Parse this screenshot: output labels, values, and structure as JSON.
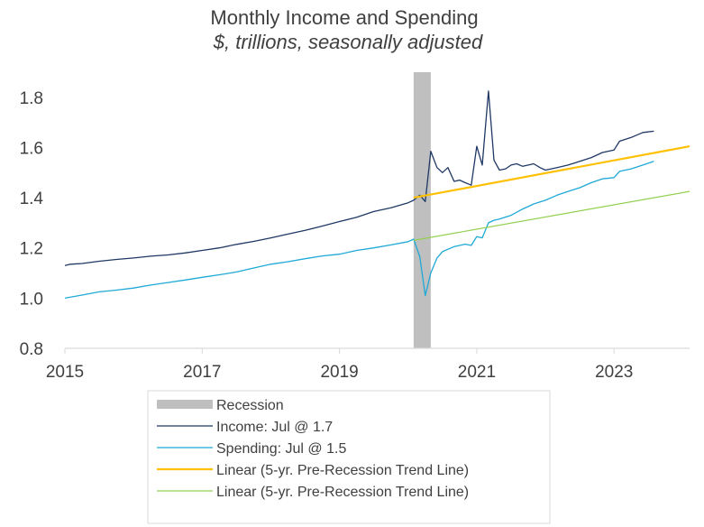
{
  "chart_data": {
    "type": "line",
    "title": "Monthly Income and Spending",
    "subtitle": "$, trillions, seasonally adjusted",
    "xlabel": "",
    "ylabel": "",
    "xlim": [
      2015,
      2024.1
    ],
    "ylim": [
      0.8,
      1.9
    ],
    "x_ticks": [
      "2015",
      "2017",
      "2019",
      "2021",
      "2023"
    ],
    "y_ticks": [
      "0.8",
      "1.0",
      "1.2",
      "1.4",
      "1.6",
      "1.8"
    ],
    "recession": {
      "name": "Recession",
      "start": 2020.08,
      "end": 2020.33,
      "color": "#bfbfbf"
    },
    "series": [
      {
        "name": "Income: Jul @ 1.7",
        "color": "#1f3864",
        "points": [
          [
            2015.0,
            1.13
          ],
          [
            2015.08,
            1.135
          ],
          [
            2015.25,
            1.138
          ],
          [
            2015.5,
            1.147
          ],
          [
            2015.75,
            1.154
          ],
          [
            2016.0,
            1.16
          ],
          [
            2016.25,
            1.167
          ],
          [
            2016.5,
            1.172
          ],
          [
            2016.75,
            1.18
          ],
          [
            2017.0,
            1.19
          ],
          [
            2017.25,
            1.2
          ],
          [
            2017.5,
            1.214
          ],
          [
            2017.75,
            1.226
          ],
          [
            2018.0,
            1.24
          ],
          [
            2018.25,
            1.255
          ],
          [
            2018.5,
            1.27
          ],
          [
            2018.75,
            1.287
          ],
          [
            2019.0,
            1.305
          ],
          [
            2019.25,
            1.322
          ],
          [
            2019.5,
            1.345
          ],
          [
            2019.75,
            1.36
          ],
          [
            2020.0,
            1.38
          ],
          [
            2020.08,
            1.39
          ],
          [
            2020.17,
            1.41
          ],
          [
            2020.25,
            1.385
          ],
          [
            2020.33,
            1.585
          ],
          [
            2020.42,
            1.52
          ],
          [
            2020.5,
            1.5
          ],
          [
            2020.58,
            1.52
          ],
          [
            2020.67,
            1.465
          ],
          [
            2020.75,
            1.47
          ],
          [
            2020.83,
            1.46
          ],
          [
            2020.92,
            1.45
          ],
          [
            2021.0,
            1.605
          ],
          [
            2021.08,
            1.53
          ],
          [
            2021.17,
            1.825
          ],
          [
            2021.25,
            1.55
          ],
          [
            2021.33,
            1.51
          ],
          [
            2021.42,
            1.515
          ],
          [
            2021.5,
            1.53
          ],
          [
            2021.58,
            1.535
          ],
          [
            2021.67,
            1.525
          ],
          [
            2021.75,
            1.53
          ],
          [
            2021.83,
            1.535
          ],
          [
            2021.92,
            1.52
          ],
          [
            2022.0,
            1.51
          ],
          [
            2022.17,
            1.52
          ],
          [
            2022.33,
            1.53
          ],
          [
            2022.5,
            1.545
          ],
          [
            2022.67,
            1.56
          ],
          [
            2022.83,
            1.58
          ],
          [
            2023.0,
            1.59
          ],
          [
            2023.08,
            1.625
          ],
          [
            2023.25,
            1.64
          ],
          [
            2023.42,
            1.66
          ],
          [
            2023.58,
            1.665
          ]
        ]
      },
      {
        "name": "Spending: Jul @ 1.5",
        "color": "#1fa9d6",
        "points": [
          [
            2015.0,
            1.0
          ],
          [
            2015.25,
            1.012
          ],
          [
            2015.5,
            1.025
          ],
          [
            2015.75,
            1.032
          ],
          [
            2016.0,
            1.04
          ],
          [
            2016.25,
            1.052
          ],
          [
            2016.5,
            1.062
          ],
          [
            2016.75,
            1.072
          ],
          [
            2017.0,
            1.083
          ],
          [
            2017.25,
            1.093
          ],
          [
            2017.5,
            1.104
          ],
          [
            2017.75,
            1.12
          ],
          [
            2018.0,
            1.135
          ],
          [
            2018.25,
            1.145
          ],
          [
            2018.5,
            1.157
          ],
          [
            2018.75,
            1.168
          ],
          [
            2019.0,
            1.175
          ],
          [
            2019.25,
            1.19
          ],
          [
            2019.5,
            1.2
          ],
          [
            2019.75,
            1.212
          ],
          [
            2020.0,
            1.225
          ],
          [
            2020.08,
            1.235
          ],
          [
            2020.17,
            1.165
          ],
          [
            2020.25,
            1.01
          ],
          [
            2020.33,
            1.1
          ],
          [
            2020.42,
            1.16
          ],
          [
            2020.5,
            1.185
          ],
          [
            2020.67,
            1.205
          ],
          [
            2020.83,
            1.215
          ],
          [
            2020.92,
            1.21
          ],
          [
            2021.0,
            1.245
          ],
          [
            2021.08,
            1.24
          ],
          [
            2021.17,
            1.3
          ],
          [
            2021.25,
            1.31
          ],
          [
            2021.33,
            1.315
          ],
          [
            2021.5,
            1.33
          ],
          [
            2021.67,
            1.355
          ],
          [
            2021.83,
            1.375
          ],
          [
            2022.0,
            1.39
          ],
          [
            2022.17,
            1.41
          ],
          [
            2022.33,
            1.425
          ],
          [
            2022.5,
            1.44
          ],
          [
            2022.67,
            1.46
          ],
          [
            2022.83,
            1.475
          ],
          [
            2023.0,
            1.48
          ],
          [
            2023.08,
            1.505
          ],
          [
            2023.25,
            1.515
          ],
          [
            2023.42,
            1.53
          ],
          [
            2023.58,
            1.545
          ]
        ]
      },
      {
        "name": "Linear (5-yr. Pre-Recession Trend Line)",
        "color": "#ffc000",
        "points": [
          [
            2020.08,
            1.4
          ],
          [
            2024.1,
            1.605
          ]
        ]
      },
      {
        "name": "Linear (5-yr. Pre-Recession Trend Line)",
        "color": "#92d050",
        "points": [
          [
            2020.08,
            1.23
          ],
          [
            2024.1,
            1.425
          ]
        ]
      }
    ],
    "legend": [
      {
        "label": "Recession",
        "kind": "box",
        "color": "#bfbfbf"
      },
      {
        "label": "Income: Jul @ 1.7",
        "kind": "line",
        "color": "#1f3864"
      },
      {
        "label": "Spending: Jul @ 1.5",
        "kind": "line",
        "color": "#1fa9d6"
      },
      {
        "label": "Linear (5-yr. Pre-Recession Trend Line)",
        "kind": "line",
        "color": "#ffc000"
      },
      {
        "label": "Linear (5-yr. Pre-Recession Trend Line)",
        "kind": "line",
        "color": "#92d050"
      }
    ],
    "legend_position": "bottom",
    "grid": false
  }
}
